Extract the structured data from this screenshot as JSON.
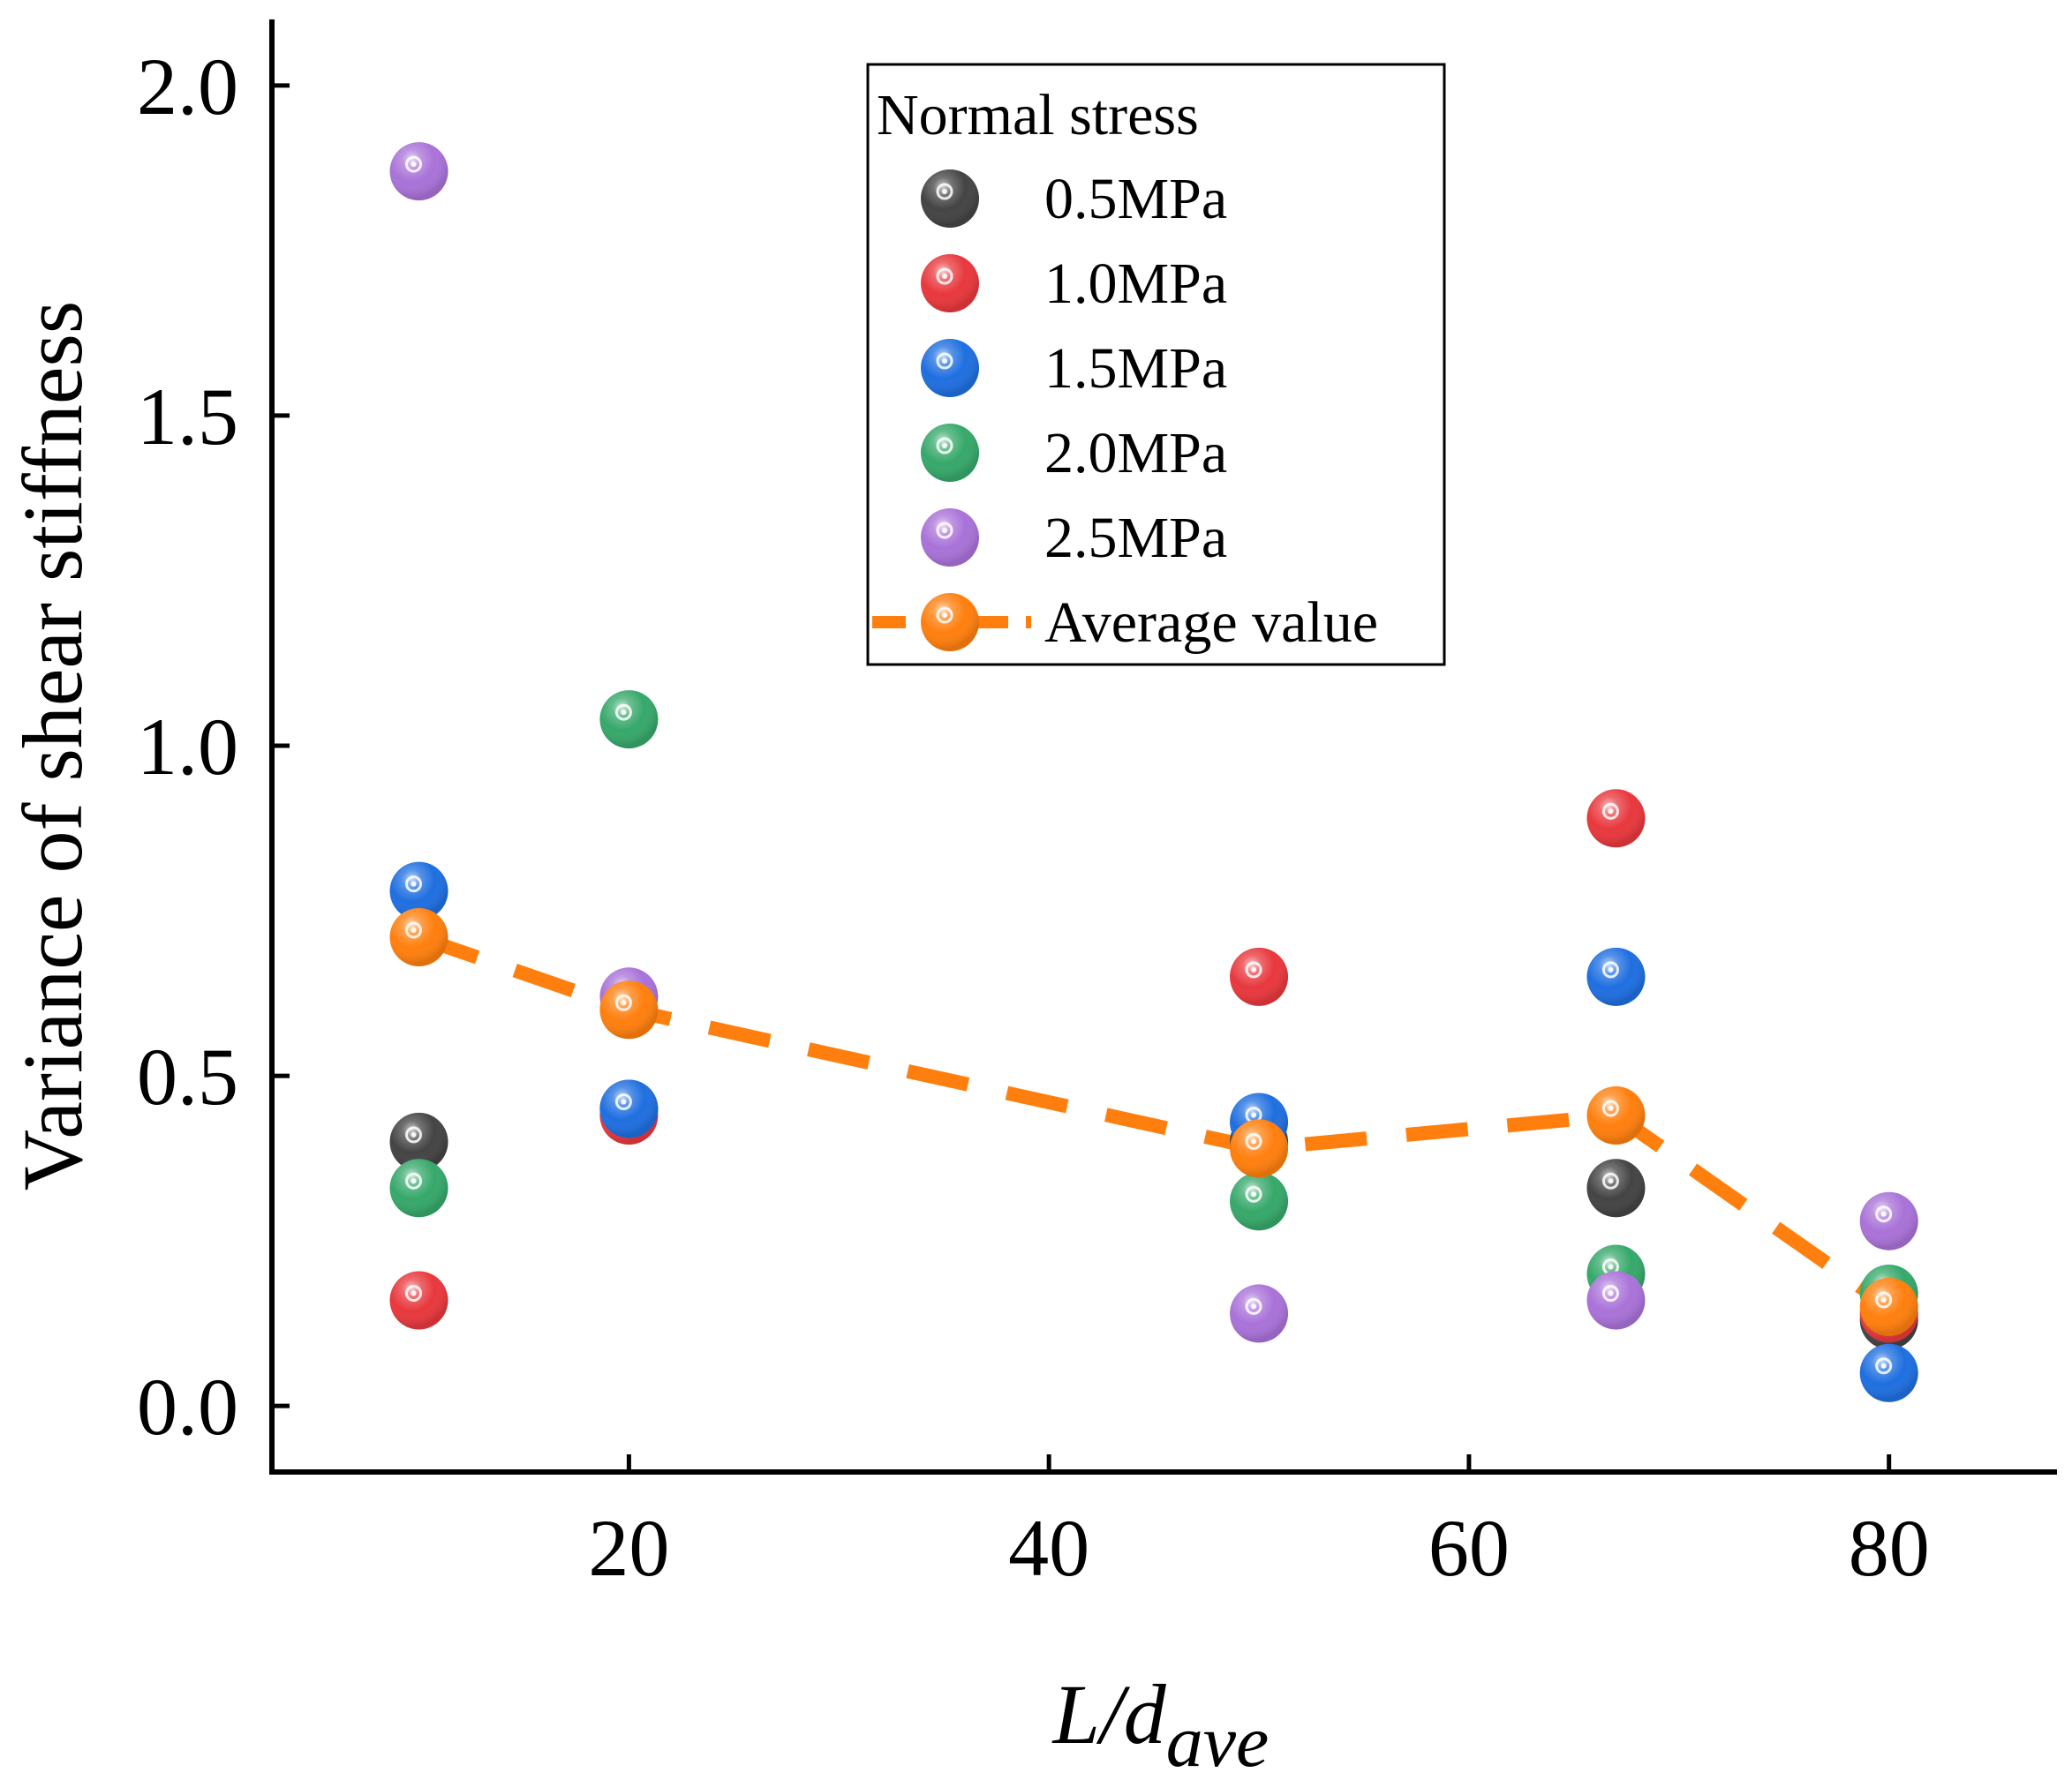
{
  "chart_data": {
    "type": "scatter",
    "title": "",
    "xlabel": "L/d",
    "xlabel_subscript": "ave",
    "ylabel": "Variance of shear stiffness",
    "xlim": [
      3,
      88
    ],
    "ylim": [
      -0.1,
      2.1
    ],
    "xticks": [
      20,
      40,
      60,
      80
    ],
    "xtick_labels": [
      "20",
      "40",
      "60",
      "80"
    ],
    "yticks": [
      0.0,
      0.5,
      1.0,
      1.5,
      2.0
    ],
    "ytick_labels": [
      "0.0",
      "0.5",
      "1.0",
      "1.5",
      "2.0"
    ],
    "grid": false,
    "legend_title": "Normal stress",
    "legend_position": "top-center",
    "series": [
      {
        "name": "0.5MPa",
        "color": "#444444",
        "x": [
          10,
          20,
          50,
          67,
          80
        ],
        "y": [
          0.4,
          0.45,
          0.4,
          0.33,
          0.13
        ]
      },
      {
        "name": "1.0MPa",
        "color": "#e8383d",
        "x": [
          10,
          20,
          50,
          67,
          80
        ],
        "y": [
          0.16,
          0.44,
          0.65,
          0.89,
          0.14
        ]
      },
      {
        "name": "1.5MPa",
        "color": "#1f6fe0",
        "x": [
          10,
          20,
          50,
          67,
          80
        ],
        "y": [
          0.78,
          0.45,
          0.43,
          0.65,
          0.05
        ]
      },
      {
        "name": "2.0MPa",
        "color": "#36a86a",
        "x": [
          10,
          20,
          50,
          67,
          80
        ],
        "y": [
          0.33,
          1.04,
          0.31,
          0.2,
          0.17
        ]
      },
      {
        "name": "2.5MPa",
        "color": "#a972d8",
        "x": [
          10,
          20,
          50,
          67,
          80
        ],
        "y": [
          1.87,
          0.62,
          0.14,
          0.16,
          0.28
        ]
      }
    ],
    "average": {
      "name": "Average value",
      "color": "#ff7f0e",
      "x": [
        10,
        20,
        50,
        67,
        80
      ],
      "y": [
        0.71,
        0.6,
        0.39,
        0.44,
        0.15
      ]
    }
  }
}
